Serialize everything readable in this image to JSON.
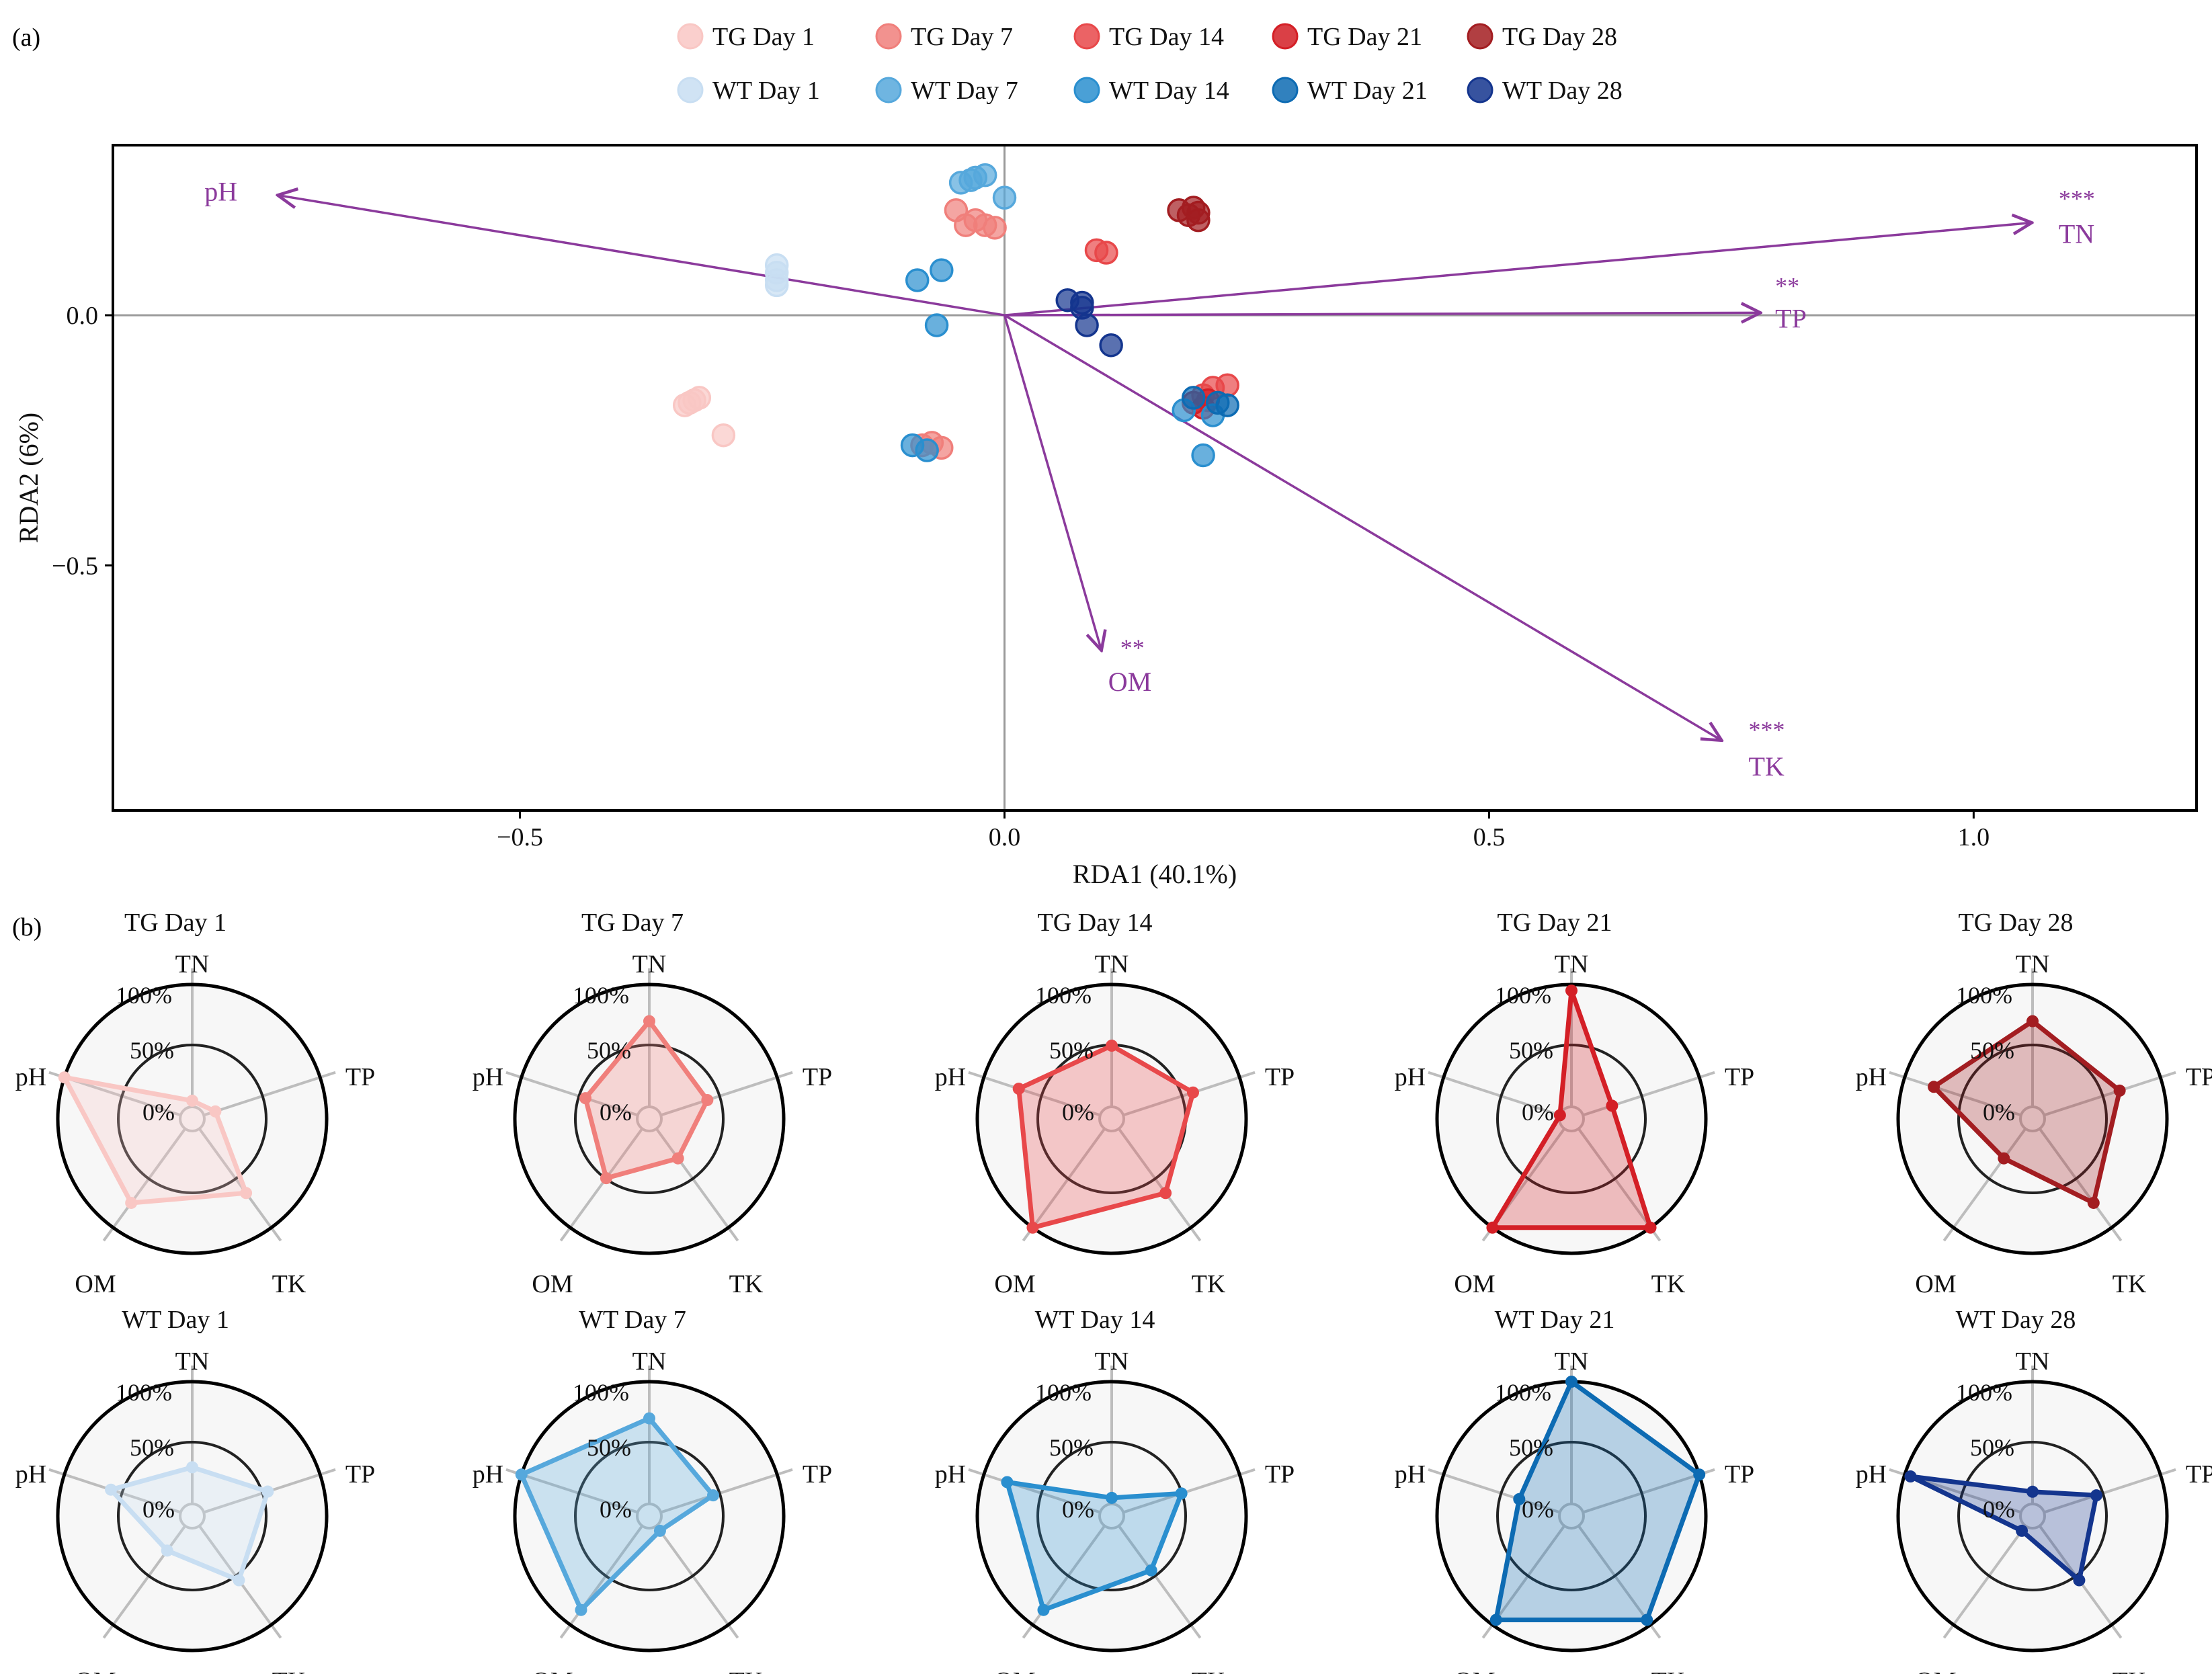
{
  "panel_labels": {
    "a": "(a)",
    "b": "(b)"
  },
  "group_colors": {
    "TG Day 1": "#f9c7c4",
    "TG Day 7": "#f07f7b",
    "TG Day 14": "#e8484a",
    "TG Day 21": "#d41f26",
    "TG Day 28": "#a31d21",
    "WT Day 1": "#c8def2",
    "WT Day 7": "#56a8dc",
    "WT Day 14": "#2a8fcf",
    "WT Day 21": "#0d6bb3",
    "WT Day 28": "#14358e"
  },
  "arrow_color": "#8b3a9c",
  "chart_data": [
    {
      "type": "scatter",
      "title": "",
      "xlabel": "RDA1 (40.1%)",
      "ylabel": "RDA2 (6%)",
      "xlim": [
        -0.92,
        1.23
      ],
      "ylim": [
        -0.99,
        0.34
      ],
      "x_ticks": [
        {
          "value": -0.5,
          "label": "−0.5"
        },
        {
          "value": 0.0,
          "label": "0.0"
        },
        {
          "value": 0.5,
          "label": "0.5"
        },
        {
          "value": 1.0,
          "label": "1.0"
        }
      ],
      "y_ticks": [
        {
          "value": 0.0,
          "label": "0.0"
        },
        {
          "value": -0.5,
          "label": "−0.5"
        }
      ],
      "legend": {
        "position": "top",
        "entries": [
          "TG Day 1",
          "TG Day 7",
          "TG Day 14",
          "TG Day 21",
          "TG Day 28",
          "WT Day 1",
          "WT Day 7",
          "WT Day 14",
          "WT Day 21",
          "WT Day 28"
        ]
      },
      "series": [
        {
          "name": "TG Day 1",
          "points": [
            [
              -0.32,
              -0.17
            ],
            [
              -0.33,
              -0.18
            ],
            [
              -0.325,
              -0.175
            ],
            [
              -0.315,
              -0.165
            ],
            [
              -0.29,
              -0.24
            ]
          ]
        },
        {
          "name": "TG Day 7",
          "points": [
            [
              -0.05,
              0.21
            ],
            [
              -0.04,
              0.18
            ],
            [
              -0.03,
              0.19
            ],
            [
              -0.02,
              0.18
            ],
            [
              -0.01,
              0.175
            ],
            [
              -0.085,
              -0.26
            ],
            [
              -0.065,
              -0.265
            ],
            [
              -0.075,
              -0.255
            ]
          ]
        },
        {
          "name": "TG Day 14",
          "points": [
            [
              0.095,
              0.13
            ],
            [
              0.105,
              0.125
            ],
            [
              0.215,
              -0.145
            ],
            [
              0.23,
              -0.14
            ],
            [
              0.205,
              -0.16
            ]
          ]
        },
        {
          "name": "TG Day 21",
          "points": [
            [
              0.195,
              -0.175
            ],
            [
              0.205,
              -0.185
            ],
            [
              0.21,
              -0.17
            ]
          ]
        },
        {
          "name": "TG Day 28",
          "points": [
            [
              0.18,
              0.21
            ],
            [
              0.19,
              0.2
            ],
            [
              0.2,
              0.19
            ],
            [
              0.2,
              0.205
            ],
            [
              0.195,
              0.215
            ]
          ]
        },
        {
          "name": "WT Day 1",
          "points": [
            [
              -0.235,
              0.1
            ],
            [
              -0.235,
              0.085
            ],
            [
              -0.235,
              0.07
            ],
            [
              -0.235,
              0.06
            ]
          ]
        },
        {
          "name": "WT Day 7",
          "points": [
            [
              -0.045,
              0.265
            ],
            [
              -0.035,
              0.27
            ],
            [
              -0.03,
              0.275
            ],
            [
              -0.02,
              0.28
            ],
            [
              0.0,
              0.235
            ]
          ]
        },
        {
          "name": "WT Day 14",
          "points": [
            [
              -0.09,
              0.07
            ],
            [
              -0.065,
              0.09
            ],
            [
              -0.07,
              -0.02
            ],
            [
              -0.08,
              -0.27
            ],
            [
              -0.095,
              -0.26
            ],
            [
              0.185,
              -0.19
            ],
            [
              0.215,
              -0.2
            ],
            [
              0.205,
              -0.28
            ]
          ]
        },
        {
          "name": "WT Day 21",
          "points": [
            [
              0.195,
              -0.165
            ],
            [
              0.22,
              -0.175
            ],
            [
              0.23,
              -0.18
            ]
          ]
        },
        {
          "name": "WT Day 28",
          "points": [
            [
              0.065,
              0.03
            ],
            [
              0.08,
              0.025
            ],
            [
              0.08,
              0.015
            ],
            [
              0.085,
              -0.02
            ],
            [
              0.11,
              -0.06
            ]
          ]
        }
      ],
      "arrows": [
        {
          "name": "pH",
          "x": -0.75,
          "y": 0.24,
          "label": "pH",
          "significance": ""
        },
        {
          "name": "TN",
          "x": 1.06,
          "y": 0.185,
          "label": "TN",
          "significance": "***"
        },
        {
          "name": "TP",
          "x": 0.78,
          "y": 0.005,
          "label": "TP",
          "significance": "**"
        },
        {
          "name": "OM",
          "x": 0.1,
          "y": -0.67,
          "label": "OM",
          "significance": "**"
        },
        {
          "name": "TK",
          "x": 0.74,
          "y": -0.85,
          "label": "TK",
          "significance": "***"
        }
      ]
    },
    {
      "type": "radar",
      "axes": [
        "TN",
        "TP",
        "TK",
        "OM",
        "pH"
      ],
      "ring_labels": [
        "0%",
        "50%",
        "100%"
      ],
      "panels": [
        {
          "name": "TG Day 1",
          "values": [
            0.05,
            0.1,
            0.65,
            0.75,
            1.0
          ]
        },
        {
          "name": "TG Day 7",
          "values": [
            0.7,
            0.4,
            0.3,
            0.5,
            0.45
          ]
        },
        {
          "name": "TG Day 14",
          "values": [
            0.5,
            0.6,
            0.65,
            1.0,
            0.7
          ]
        },
        {
          "name": "TG Day 21",
          "values": [
            0.95,
            0.25,
            1.0,
            1.0,
            0.0
          ]
        },
        {
          "name": "TG Day 28",
          "values": [
            0.7,
            0.65,
            0.75,
            0.3,
            0.75
          ]
        },
        {
          "name": "WT Day 1",
          "values": [
            0.3,
            0.55,
            0.55,
            0.25,
            0.6
          ]
        },
        {
          "name": "WT Day 7",
          "values": [
            0.7,
            0.45,
            0.05,
            0.85,
            1.0
          ]
        },
        {
          "name": "WT Day 14",
          "values": [
            0.05,
            0.5,
            0.45,
            0.85,
            0.8
          ]
        },
        {
          "name": "WT Day 21",
          "values": [
            1.0,
            1.0,
            0.95,
            0.95,
            0.35
          ]
        },
        {
          "name": "WT Day 28",
          "values": [
            0.1,
            0.45,
            0.55,
            0.05,
            0.95
          ]
        }
      ]
    }
  ]
}
